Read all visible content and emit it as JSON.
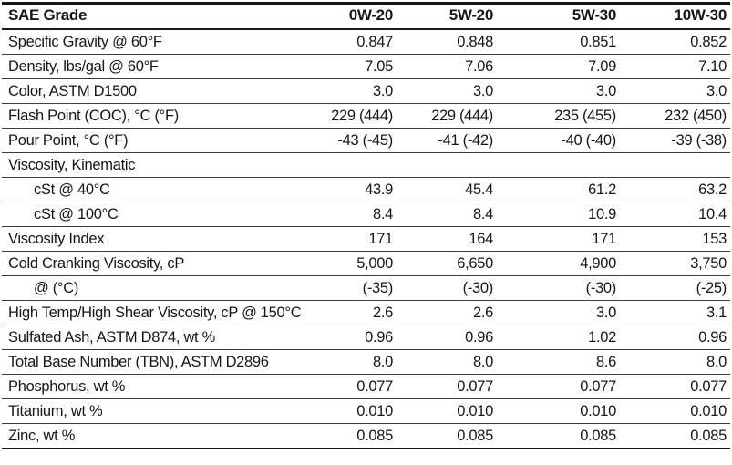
{
  "table": {
    "header_label": "SAE Grade",
    "columns": [
      "0W-20",
      "5W-20",
      "5W-30",
      "10W-30"
    ],
    "rows": [
      {
        "label": "Specific Gravity @ 60°F",
        "indent": false,
        "values": [
          "0.847",
          "0.848",
          "0.851",
          "0.852"
        ]
      },
      {
        "label": "Density, lbs/gal @ 60°F",
        "indent": false,
        "values": [
          "7.05",
          "7.06",
          "7.09",
          "7.10"
        ]
      },
      {
        "label": "Color, ASTM D1500",
        "indent": false,
        "values": [
          "3.0",
          "3.0",
          "3.0",
          "3.0"
        ]
      },
      {
        "label": "Flash Point (COC), °C (°F)",
        "indent": false,
        "values": [
          "229 (444)",
          "229 (444)",
          "235 (455)",
          "232 (450)"
        ]
      },
      {
        "label": "Pour Point, °C (°F)",
        "indent": false,
        "values": [
          "-43 (-45)",
          "-41 (-42)",
          "-40 (-40)",
          "-39 (-38)"
        ]
      },
      {
        "label": "Viscosity, Kinematic",
        "indent": false,
        "values": [
          "",
          "",
          "",
          ""
        ]
      },
      {
        "label": "cSt @ 40°C",
        "indent": true,
        "values": [
          "43.9",
          "45.4",
          "61.2",
          "63.2"
        ]
      },
      {
        "label": "cSt @ 100°C",
        "indent": true,
        "values": [
          "8.4",
          "8.4",
          "10.9",
          "10.4"
        ]
      },
      {
        "label": "Viscosity Index",
        "indent": false,
        "values": [
          "171",
          "164",
          "171",
          "153"
        ]
      },
      {
        "label": "Cold Cranking Viscosity, cP",
        "indent": false,
        "values": [
          "5,000",
          "6,650",
          "4,900",
          "3,750"
        ]
      },
      {
        "label": "@ (°C)",
        "indent": true,
        "values": [
          "(-35)",
          "(-30)",
          "(-30)",
          "(-25)"
        ]
      },
      {
        "label": "High Temp/High Shear Viscosity, cP @ 150°C",
        "indent": false,
        "values": [
          "2.6",
          "2.6",
          "3.0",
          "3.1"
        ]
      },
      {
        "label": "Sulfated Ash, ASTM D874, wt %",
        "indent": false,
        "values": [
          "0.96",
          "0.96",
          "1.02",
          "0.96"
        ]
      },
      {
        "label": "Total Base Number (TBN), ASTM D2896",
        "indent": false,
        "values": [
          "8.0",
          "8.0",
          "8.6",
          "8.0"
        ]
      },
      {
        "label": "Phosphorus, wt %",
        "indent": false,
        "values": [
          "0.077",
          "0.077",
          "0.077",
          "0.077"
        ]
      },
      {
        "label": "Titanium, wt %",
        "indent": false,
        "values": [
          "0.010",
          "0.010",
          "0.010",
          "0.010"
        ]
      },
      {
        "label": "Zinc, wt %",
        "indent": false,
        "values": [
          "0.085",
          "0.085",
          "0.085",
          "0.085"
        ]
      }
    ]
  }
}
